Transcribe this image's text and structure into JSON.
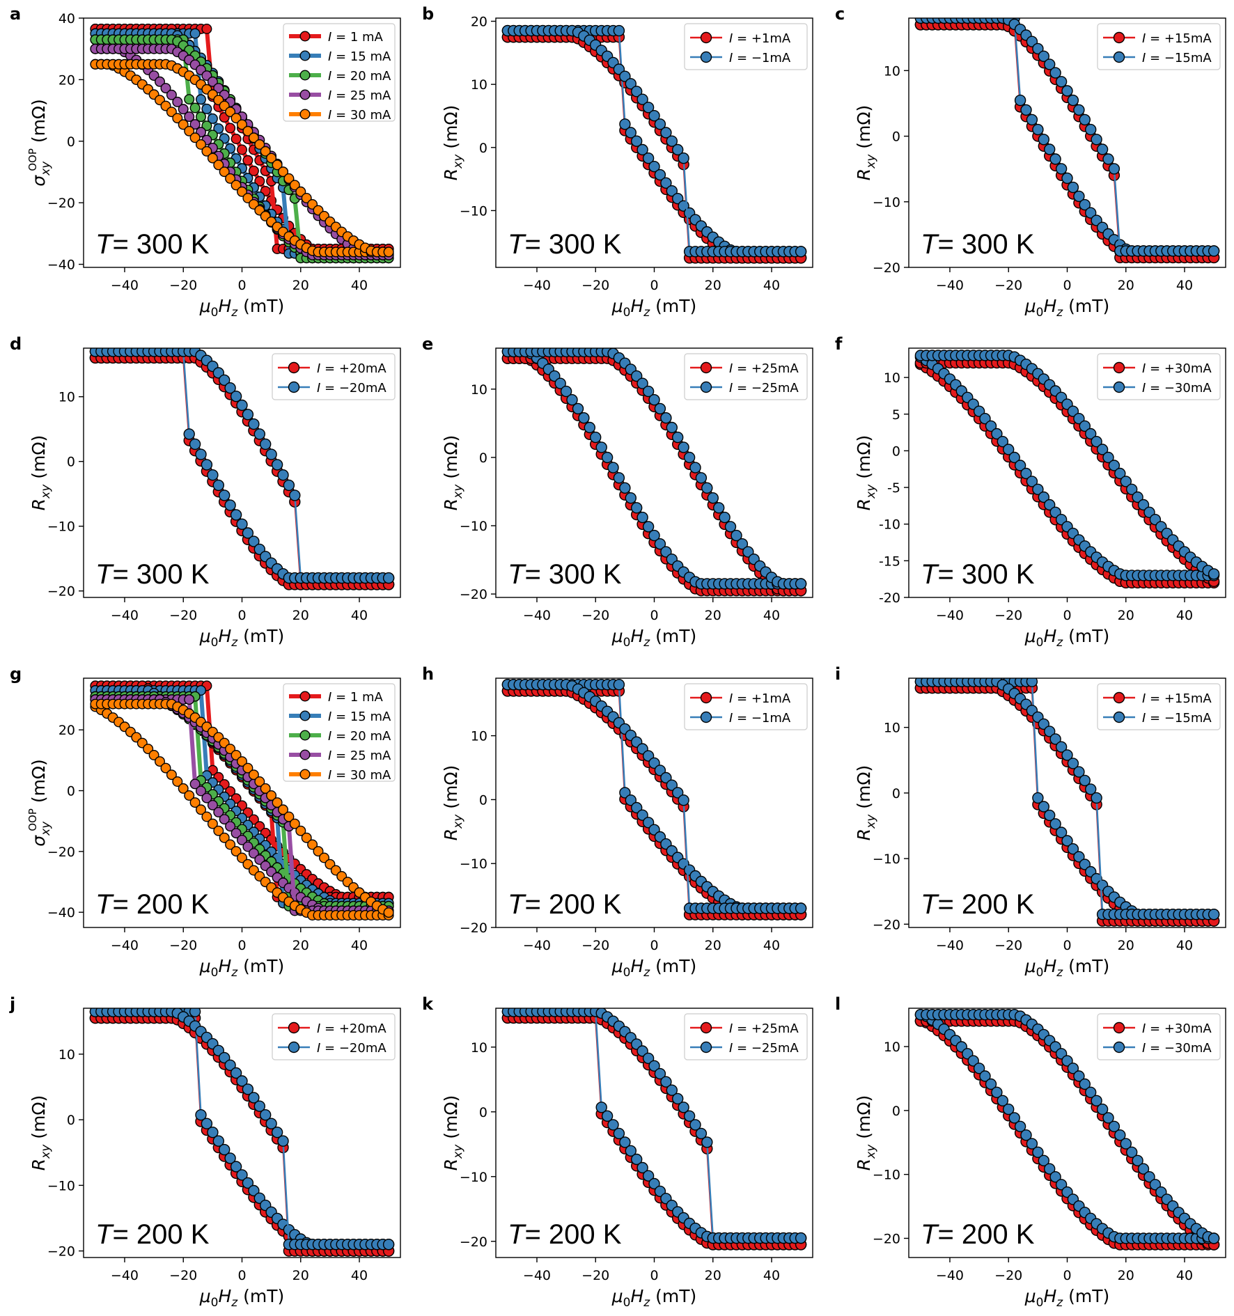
{
  "colors": {
    "red": "#e41a1c",
    "blue": "#377eb8",
    "green": "#4daf4a",
    "purple": "#984ea3",
    "orange": "#ff7f00"
  },
  "common": {
    "x_tick_labels": [
      "−40",
      "−20",
      "0",
      "20",
      "40"
    ],
    "xlabel": "μ0Hz (mT)",
    "ylabel_rxy": "Rxy (mΩ)",
    "ylabel_oop": "σxy^OOP (mΩ)"
  },
  "chart_data": [
    {
      "id": "a",
      "type": "line",
      "temperature": "T= 300 K",
      "xlim": [
        -54,
        54
      ],
      "ylim": [
        -41,
        40
      ],
      "yticks": [
        {
          "v": 40,
          "t": "40"
        },
        {
          "v": 20,
          "t": "20"
        },
        {
          "v": 0,
          "t": "0"
        },
        {
          "v": -20,
          "t": "−20"
        },
        {
          "v": -40,
          "t": "−40"
        }
      ],
      "legend_style": "multi",
      "series": [
        {
          "name": "I = 1 mA",
          "color": "red",
          "sat": 36.5,
          "neg": -35,
          "hc": 12,
          "end": 26,
          "w": 2
        },
        {
          "name": "I = 15 mA",
          "color": "blue",
          "sat": 35,
          "neg": -36.5,
          "hc": 15,
          "end": 28,
          "w": 5
        },
        {
          "name": "I = 20 mA",
          "color": "green",
          "sat": 33,
          "neg": -38,
          "hc": 19,
          "end": 30,
          "w": 7
        },
        {
          "name": "I = 25 mA",
          "color": "purple",
          "sat": 30,
          "neg": -37,
          "hc": 0,
          "end": 33,
          "w": 9
        },
        {
          "name": "I = 30 mA",
          "color": "orange",
          "sat": 25,
          "neg": -36,
          "hc": 0,
          "end": 35,
          "w": 10
        }
      ]
    },
    {
      "id": "b",
      "type": "line",
      "temperature": "T= 300 K",
      "xlim": [
        -54,
        54
      ],
      "ylim": [
        -19,
        20.5
      ],
      "yticks": [
        {
          "v": 20,
          "t": "20"
        },
        {
          "v": 10,
          "t": "10"
        },
        {
          "v": 0,
          "t": "0"
        },
        {
          "v": -10,
          "t": "−10"
        }
      ],
      "legend_style": "pair",
      "hc": 11,
      "end": 33,
      "w": 6,
      "sat_pos": 18,
      "sat_neg": -17,
      "series": [
        {
          "name": "I = +1mA",
          "color": "red"
        },
        {
          "name": "I = −1mA",
          "color": "blue"
        }
      ]
    },
    {
      "id": "c",
      "type": "line",
      "temperature": "T= 300 K",
      "xlim": [
        -54,
        54
      ],
      "ylim": [
        -20,
        18
      ],
      "yticks": [
        {
          "v": 10,
          "t": "10"
        },
        {
          "v": 0,
          "t": "0"
        },
        {
          "v": -10,
          "t": "−10"
        },
        {
          "v": -20,
          "t": "−20"
        }
      ],
      "legend_style": "pair",
      "hc": 17,
      "end": 30,
      "w": 9,
      "sat_pos": 17.5,
      "sat_neg": -18,
      "series": [
        {
          "name": "I = +15mA",
          "color": "red"
        },
        {
          "name": "I = −15mA",
          "color": "blue"
        }
      ]
    },
    {
      "id": "d",
      "type": "line",
      "temperature": "T= 300 K",
      "xlim": [
        -54,
        54
      ],
      "ylim": [
        -21,
        17.5
      ],
      "yticks": [
        {
          "v": 10,
          "t": "10"
        },
        {
          "v": 0,
          "t": "0"
        },
        {
          "v": -10,
          "t": "−10"
        },
        {
          "v": -20,
          "t": "−20"
        }
      ],
      "legend_style": "pair",
      "hc": 19,
      "end": 28,
      "w": 12,
      "sat_pos": 16.5,
      "sat_neg": -18.5,
      "series": [
        {
          "name": "I = +20mA",
          "color": "red"
        },
        {
          "name": "I = −20mA",
          "color": "blue"
        }
      ]
    },
    {
      "id": "e",
      "type": "line",
      "temperature": "T= 300 K",
      "xlim": [
        -54,
        54
      ],
      "ylim": [
        -20.5,
        16
      ],
      "yticks": [
        {
          "v": 10,
          "t": "10"
        },
        {
          "v": 0,
          "t": "0"
        },
        {
          "v": -10,
          "t": "−10"
        },
        {
          "v": -20,
          "t": "−20"
        }
      ],
      "legend_style": "pair",
      "hc": 0,
      "end": 29,
      "w": 14,
      "sat_pos": 15,
      "sat_neg": -19,
      "series": [
        {
          "name": "I = +25mA",
          "color": "red"
        },
        {
          "name": "I = −25mA",
          "color": "blue"
        }
      ]
    },
    {
      "id": "f",
      "type": "line",
      "temperature": "T= 300 K",
      "xlim": [
        -54,
        54
      ],
      "ylim": [
        -20,
        14
      ],
      "yticks": [
        {
          "v": 10,
          "t": "10"
        },
        {
          "v": 5,
          "t": "5"
        },
        {
          "v": 0,
          "t": "0"
        },
        {
          "v": -5,
          "t": "-5"
        },
        {
          "v": -10,
          "t": "-10"
        },
        {
          "v": -15,
          "t": "-15"
        },
        {
          "v": -20,
          "t": "-20"
        }
      ],
      "legend_style": "pair",
      "hc": 0,
      "end": 35,
      "w": 16,
      "sat_pos": 12.5,
      "sat_neg": -17.5,
      "series": [
        {
          "name": "I = +30mA",
          "color": "red"
        },
        {
          "name": "I = −30mA",
          "color": "blue"
        }
      ]
    },
    {
      "id": "g",
      "type": "line",
      "temperature": "T= 200 K",
      "xlim": [
        -54,
        54
      ],
      "ylim": [
        -45,
        37
      ],
      "yticks": [
        {
          "v": 20,
          "t": "20"
        },
        {
          "v": 0,
          "t": "0"
        },
        {
          "v": -20,
          "t": "−20"
        },
        {
          "v": -40,
          "t": "−40"
        }
      ],
      "legend_style": "multi",
      "series": [
        {
          "name": "I = 1 mA",
          "color": "red",
          "sat": 34.5,
          "neg": -35,
          "hc": 11,
          "end": 38,
          "w": 4
        },
        {
          "name": "I = 15 mA",
          "color": "blue",
          "sat": 33,
          "neg": -37,
          "hc": 13,
          "end": 38,
          "w": 6
        },
        {
          "name": "I = 20 mA",
          "color": "green",
          "sat": 31,
          "neg": -38,
          "hc": 15,
          "end": 38,
          "w": 8
        },
        {
          "name": "I = 25 mA",
          "color": "purple",
          "sat": 30,
          "neg": -39.5,
          "hc": 17,
          "end": 38,
          "w": 10
        },
        {
          "name": "I = 30 mA",
          "color": "orange",
          "sat": 28.5,
          "neg": -41,
          "hc": 0,
          "end": 38,
          "w": 14
        }
      ]
    },
    {
      "id": "h",
      "type": "line",
      "temperature": "T= 200 K",
      "xlim": [
        -54,
        54
      ],
      "ylim": [
        -20,
        19
      ],
      "yticks": [
        {
          "v": 10,
          "t": "10"
        },
        {
          "v": 0,
          "t": "0"
        },
        {
          "v": -10,
          "t": "−10"
        },
        {
          "v": -20,
          "t": "−20"
        }
      ],
      "legend_style": "pair",
      "hc": 11,
      "end": 38,
      "w": 9,
      "sat_pos": 17.5,
      "sat_neg": -17.5,
      "series": [
        {
          "name": "I = +1mA",
          "color": "red"
        },
        {
          "name": "I = −1mA",
          "color": "blue"
        }
      ]
    },
    {
      "id": "i",
      "type": "line",
      "temperature": "T= 200 K",
      "xlim": [
        -54,
        54
      ],
      "ylim": [
        -20.5,
        17.5
      ],
      "yticks": [
        {
          "v": 10,
          "t": "10"
        },
        {
          "v": 0,
          "t": "0"
        },
        {
          "v": -10,
          "t": "−10"
        },
        {
          "v": -20,
          "t": "−20"
        }
      ],
      "legend_style": "pair",
      "hc": 12,
      "end": 34,
      "w": 10,
      "sat_pos": 16.5,
      "sat_neg": -19,
      "series": [
        {
          "name": "I = +15mA",
          "color": "red"
        },
        {
          "name": "I = −15mA",
          "color": "blue"
        }
      ]
    },
    {
      "id": "j",
      "type": "line",
      "temperature": "T= 200 K",
      "xlim": [
        -54,
        54
      ],
      "ylim": [
        -21,
        17
      ],
      "yticks": [
        {
          "v": 10,
          "t": "10"
        },
        {
          "v": 0,
          "t": "0"
        },
        {
          "v": -10,
          "t": "−10"
        },
        {
          "v": -20,
          "t": "−20"
        }
      ],
      "legend_style": "pair",
      "hc": 16,
      "end": 34,
      "w": 11,
      "sat_pos": 16,
      "sat_neg": -19.5,
      "series": [
        {
          "name": "I = +20mA",
          "color": "red"
        },
        {
          "name": "I = −20mA",
          "color": "blue"
        }
      ]
    },
    {
      "id": "k",
      "type": "line",
      "temperature": "T= 200 K",
      "xlim": [
        -54,
        54
      ],
      "ylim": [
        -22.5,
        16
      ],
      "yticks": [
        {
          "v": 10,
          "t": "10"
        },
        {
          "v": 0,
          "t": "0"
        },
        {
          "v": -10,
          "t": "−10"
        },
        {
          "v": -20,
          "t": "−20"
        }
      ],
      "legend_style": "pair",
      "hc": 20,
      "end": 33,
      "w": 14,
      "sat_pos": 15,
      "sat_neg": -20,
      "series": [
        {
          "name": "I = +25mA",
          "color": "red"
        },
        {
          "name": "I = −25mA",
          "color": "blue"
        }
      ]
    },
    {
      "id": "l",
      "type": "line",
      "temperature": "T= 200 K",
      "xlim": [
        -54,
        54
      ],
      "ylim": [
        -23,
        16
      ],
      "yticks": [
        {
          "v": 10,
          "t": "10"
        },
        {
          "v": 0,
          "t": "0"
        },
        {
          "v": -10,
          "t": "−10"
        },
        {
          "v": -20,
          "t": "−20"
        }
      ],
      "legend_style": "pair",
      "hc": 0,
      "end": 33,
      "w": 16,
      "sat_pos": 14.5,
      "sat_neg": -20.5,
      "series": [
        {
          "name": "I = +30mA",
          "color": "red"
        },
        {
          "name": "I = −30mA",
          "color": "blue"
        }
      ]
    }
  ]
}
